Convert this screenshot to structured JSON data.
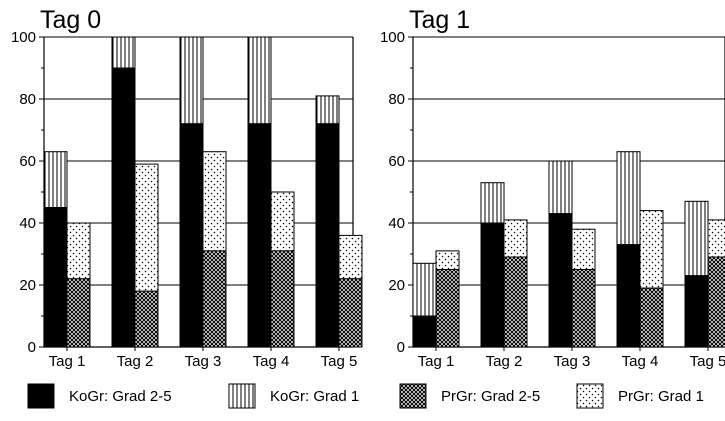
{
  "chart_data": {
    "type": "bar",
    "stacked": true,
    "grouped": true,
    "grid": "horizontal",
    "legend_position": "bottom",
    "ylim": [
      0,
      100
    ],
    "yticks": [
      0,
      20,
      40,
      60,
      80,
      100
    ],
    "categories": [
      "Tag 1",
      "Tag 2",
      "Tag 3",
      "Tag 4",
      "Tag 5"
    ],
    "series": [
      {
        "name": "KoGr: Grad 2-5",
        "pattern": "solid-black"
      },
      {
        "name": "KoGr: Grad 1",
        "pattern": "vertical-stripes"
      },
      {
        "name": "PrGr: Grad 2-5",
        "pattern": "crosshatch"
      },
      {
        "name": "PrGr: Grad 1",
        "pattern": "dots"
      }
    ],
    "panels": [
      {
        "title": "Tag 0",
        "groups": {
          "KoGr": {
            "grad_2_5": [
              45,
              90,
              72,
              72,
              72
            ],
            "grad_1": [
              18,
              10,
              28,
              28,
              9
            ]
          },
          "PrGr": {
            "grad_2_5": [
              22,
              18,
              31,
              31,
              22
            ],
            "grad_1": [
              18,
              41,
              32,
              19,
              14
            ]
          }
        }
      },
      {
        "title": "Tag 1",
        "groups": {
          "KoGr": {
            "grad_2_5": [
              10,
              40,
              43,
              33,
              23
            ],
            "grad_1": [
              17,
              13,
              17,
              30,
              24
            ]
          },
          "PrGr": {
            "grad_2_5": [
              25,
              29,
              25,
              19,
              29
            ],
            "grad_1": [
              6,
              12,
              13,
              25,
              12
            ]
          }
        }
      }
    ]
  }
}
